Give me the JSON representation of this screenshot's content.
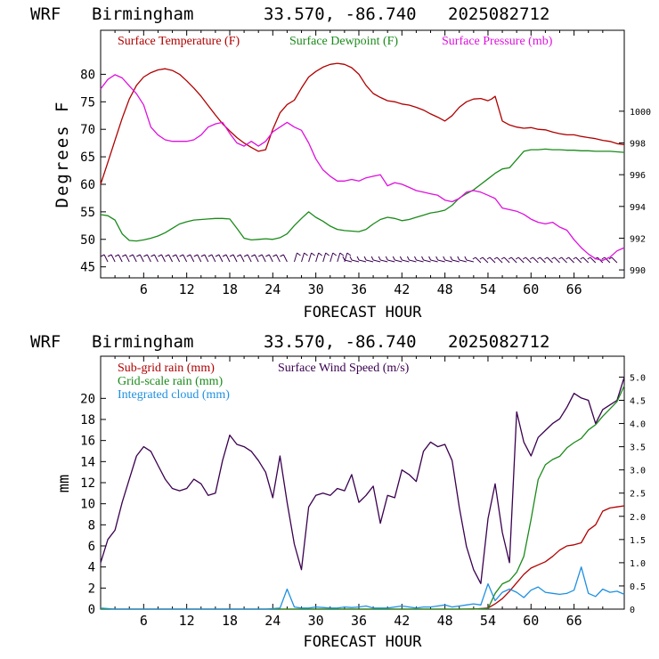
{
  "chart_data": [
    {
      "type": "line",
      "header": {
        "model": "WRF",
        "location": "Birmingham",
        "coords": "33.570, -86.740",
        "run": "2025082712"
      },
      "xlabel": "FORECAST HOUR",
      "ylabel": "Degrees F",
      "xlim": [
        0,
        73
      ],
      "ylim": [
        43,
        88
      ],
      "y2lim": [
        989.5,
        1005.1
      ],
      "xticks": [
        "6",
        "12",
        "18",
        "24",
        "30",
        "36",
        "42",
        "48",
        "54",
        "60",
        "66"
      ],
      "yticks": [
        "45",
        "50",
        "55",
        "60",
        "65",
        "70",
        "75",
        "80"
      ],
      "y2ticks": [
        "990",
        "992",
        "994",
        "996",
        "998",
        "1000"
      ],
      "legend": [
        {
          "label": "Surface Temperature (F)",
          "color": "#b00000"
        },
        {
          "label": "Surface Dewpoint (F)",
          "color": "#1a8a1a"
        },
        {
          "label": "Surface Pressure (mb)",
          "color": "#dd10dd"
        }
      ],
      "series": [
        {
          "name": "Surface Temperature (F)",
          "axis": "left",
          "color": "#b00000",
          "x": [
            0,
            1,
            2,
            3,
            4,
            5,
            6,
            7,
            8,
            9,
            10,
            11,
            12,
            13,
            14,
            15,
            16,
            17,
            18,
            19,
            20,
            21,
            22,
            23,
            24,
            25,
            26,
            27,
            28,
            29,
            30,
            31,
            32,
            33,
            34,
            35,
            36,
            37,
            38,
            39,
            40,
            41,
            42,
            43,
            44,
            45,
            46,
            47,
            48,
            49,
            50,
            51,
            52,
            53,
            54,
            54.5,
            55,
            56,
            57,
            58,
            59,
            60,
            61,
            62,
            63,
            64,
            65,
            66,
            67,
            68,
            69,
            70,
            71,
            72,
            73
          ],
          "y": [
            60,
            64,
            68,
            72,
            75.5,
            78,
            79.5,
            80.3,
            80.8,
            81,
            80.7,
            80,
            78.8,
            77.5,
            76,
            74.3,
            72.6,
            71,
            69.7,
            68.5,
            67.5,
            66.7,
            66,
            66.3,
            70,
            73,
            74.5,
            75.3,
            77.5,
            79.5,
            80.5,
            81.3,
            81.8,
            82,
            81.8,
            81.2,
            80,
            78,
            76.5,
            75.8,
            75.2,
            75,
            74.6,
            74.4,
            74,
            73.5,
            72.8,
            72.2,
            71.5,
            72.5,
            74,
            75,
            75.5,
            75.6,
            75.2,
            75.5,
            76,
            71.5,
            70.8,
            70.4,
            70.2,
            70.3,
            70,
            69.9,
            69.5,
            69.2,
            69,
            69,
            68.7,
            68.5,
            68.3,
            68,
            67.8,
            67.4,
            67.2
          ]
        },
        {
          "name": "Surface Dewpoint (F)",
          "axis": "left",
          "color": "#1a8a1a",
          "x": [
            0,
            1,
            2,
            3,
            4,
            5,
            6,
            7,
            8,
            9,
            10,
            11,
            12,
            13,
            14,
            15,
            16,
            17,
            18,
            19,
            20,
            21,
            22,
            23,
            24,
            25,
            26,
            27,
            28,
            29,
            30,
            31,
            32,
            33,
            34,
            35,
            36,
            37,
            38,
            39,
            40,
            41,
            42,
            43,
            44,
            45,
            46,
            47,
            48,
            49,
            50,
            51,
            52,
            53,
            54,
            55,
            56,
            57,
            58,
            59,
            60,
            61,
            62,
            63,
            64,
            65,
            66,
            67,
            68,
            69,
            70,
            71,
            72,
            73
          ],
          "y": [
            54.5,
            54.3,
            53.5,
            51,
            49.8,
            49.7,
            49.9,
            50.2,
            50.6,
            51.2,
            52,
            52.8,
            53.2,
            53.5,
            53.6,
            53.7,
            53.8,
            53.8,
            53.7,
            52,
            50.2,
            49.9,
            50,
            50.1,
            50,
            50.3,
            51,
            52.5,
            53.8,
            55,
            54,
            53.3,
            52.4,
            51.8,
            51.6,
            51.5,
            51.4,
            51.8,
            52.8,
            53.6,
            54,
            53.8,
            53.4,
            53.6,
            54,
            54.4,
            54.8,
            55,
            55.3,
            56.2,
            57.5,
            58.3,
            59,
            60,
            61,
            62,
            62.8,
            63,
            64.5,
            66,
            66.3,
            66.3,
            66.4,
            66.3,
            66.3,
            66.2,
            66.2,
            66.1,
            66.1,
            66,
            66,
            66,
            65.9,
            65.8
          ]
        },
        {
          "name": "Surface Pressure (mb)",
          "axis": "right",
          "color": "#dd10dd",
          "x": [
            0,
            1,
            2,
            3,
            4,
            5,
            6,
            7,
            8,
            9,
            10,
            11,
            12,
            13,
            14,
            15,
            16,
            17,
            18,
            19,
            20,
            21,
            22,
            23,
            24,
            25,
            26,
            27,
            28,
            29,
            30,
            31,
            32,
            33,
            34,
            35,
            36,
            37,
            38,
            39,
            40,
            41,
            42,
            43,
            44,
            45,
            46,
            47,
            48,
            49,
            50,
            51,
            52,
            53,
            54,
            55,
            56,
            57,
            58,
            59,
            60,
            61,
            62,
            63,
            64,
            65,
            66,
            67,
            68,
            69,
            70,
            71,
            72,
            73
          ],
          "y": [
            1001.4,
            1002,
            1002.3,
            1002.1,
            1001.6,
            1001.1,
            1000.4,
            999,
            998.5,
            998.2,
            998.1,
            998.1,
            998.1,
            998.2,
            998.5,
            999,
            999.2,
            999.3,
            998.6,
            998,
            997.8,
            998.1,
            997.8,
            998.1,
            998.7,
            999,
            999.3,
            999,
            998.8,
            998,
            997,
            996.3,
            995.9,
            995.6,
            995.6,
            995.7,
            995.6,
            995.8,
            995.9,
            996,
            995.3,
            995.5,
            995.4,
            995.2,
            995,
            994.9,
            994.8,
            994.7,
            994.4,
            994.3,
            994.5,
            994.9,
            995,
            994.9,
            994.7,
            994.5,
            993.9,
            993.8,
            993.7,
            993.5,
            993.2,
            993,
            992.9,
            993,
            992.7,
            992.5,
            991.9,
            991.4,
            991,
            990.7,
            990.6,
            990.8,
            991.2,
            991.4
          ]
        }
      ]
    },
    {
      "type": "line",
      "header": {
        "model": "WRF",
        "location": "Birmingham",
        "coords": "33.570, -86.740",
        "run": "2025082712"
      },
      "xlabel": "FORECAST HOUR",
      "ylabel": "mm",
      "xlim": [
        0,
        73
      ],
      "ylim": [
        0,
        24
      ],
      "y2lim": [
        0,
        5.45
      ],
      "xticks": [
        "6",
        "12",
        "18",
        "24",
        "30",
        "36",
        "42",
        "48",
        "54",
        "60",
        "66"
      ],
      "yticks": [
        "0",
        "2",
        "4",
        "6",
        "8",
        "10",
        "12",
        "14",
        "16",
        "18",
        "20"
      ],
      "y2ticks": [
        "0",
        "0.5",
        "1.0",
        "1.5",
        "2.0",
        "2.5",
        "3.0",
        "3.5",
        "4.0",
        "4.5",
        "5.0"
      ],
      "legend": [
        {
          "label": "Sub-grid rain (mm)",
          "color": "#b00000"
        },
        {
          "label": "Surface Wind Speed (m/s)",
          "color": "#3a0050"
        },
        {
          "label": "Grid-scale rain (mm)",
          "color": "#1a8a1a"
        },
        {
          "label": "Integrated cloud (mm)",
          "color": "#1e90e0"
        }
      ],
      "series": [
        {
          "name": "Surface Wind Speed (m/s)",
          "axis": "right",
          "color": "#3a0050",
          "x": [
            0,
            1,
            2,
            3,
            4,
            5,
            6,
            7,
            8,
            9,
            10,
            11,
            12,
            13,
            14,
            15,
            16,
            17,
            18,
            19,
            20,
            21,
            22,
            23,
            24,
            25,
            26,
            27,
            28,
            29,
            30,
            31,
            32,
            33,
            34,
            35,
            36,
            37,
            38,
            39,
            40,
            41,
            42,
            43,
            44,
            45,
            46,
            47,
            48,
            49,
            50,
            51,
            52,
            53,
            54,
            55,
            56,
            57,
            58,
            59,
            60,
            61,
            62,
            63,
            64,
            65,
            66,
            67,
            68,
            69,
            70,
            71,
            72,
            73
          ],
          "y": [
            1.0,
            1.5,
            1.7,
            2.3,
            2.8,
            3.3,
            3.5,
            3.4,
            3.1,
            2.8,
            2.6,
            2.55,
            2.6,
            2.8,
            2.7,
            2.45,
            2.5,
            3.2,
            3.75,
            3.55,
            3.5,
            3.4,
            3.2,
            2.95,
            2.4,
            3.3,
            2.3,
            1.4,
            0.85,
            2.2,
            2.45,
            2.5,
            2.45,
            2.6,
            2.55,
            2.9,
            2.3,
            2.45,
            2.65,
            1.85,
            2.45,
            2.4,
            3.0,
            2.9,
            2.75,
            3.4,
            3.6,
            3.5,
            3.55,
            3.2,
            2.2,
            1.35,
            0.85,
            0.55,
            1.95,
            2.7,
            1.65,
            1.0,
            4.25,
            3.6,
            3.3,
            3.7,
            3.85,
            4.0,
            4.1,
            4.35,
            4.65,
            4.55,
            4.5,
            4.0,
            4.3,
            4.4,
            4.5,
            5.0
          ]
        },
        {
          "name": "Sub-grid rain (mm)",
          "axis": "left",
          "color": "#b00000",
          "x": [
            0,
            50,
            52,
            54,
            55,
            56,
            57,
            58,
            59,
            60,
            61,
            62,
            63,
            64,
            65,
            66,
            67,
            68,
            69,
            70,
            71,
            72,
            73
          ],
          "y": [
            0,
            0,
            0,
            0.1,
            0.5,
            1.0,
            1.7,
            2.5,
            3.3,
            3.9,
            4.2,
            4.5,
            5.0,
            5.6,
            6.0,
            6.1,
            6.3,
            7.5,
            8.0,
            9.3,
            9.6,
            9.7,
            9.8
          ]
        },
        {
          "name": "Grid-scale rain (mm)",
          "axis": "left",
          "color": "#1a8a1a",
          "x": [
            0,
            50,
            54,
            55,
            56,
            57,
            58,
            59,
            60,
            61,
            62,
            63,
            64,
            65,
            66,
            67,
            68,
            69,
            70,
            71,
            72,
            73
          ],
          "y": [
            0,
            0,
            0.05,
            1.5,
            2.4,
            2.7,
            3.5,
            5.0,
            8.5,
            12.3,
            13.7,
            14.2,
            14.5,
            15.3,
            15.8,
            16.2,
            17.0,
            17.5,
            18.3,
            19.0,
            19.7,
            21.2
          ]
        },
        {
          "name": "Integrated cloud (mm)",
          "axis": "left",
          "color": "#1e90e0",
          "x": [
            0,
            1,
            2,
            3,
            4,
            5,
            6,
            7,
            8,
            9,
            10,
            11,
            12,
            13,
            14,
            15,
            16,
            17,
            18,
            19,
            20,
            21,
            22,
            23,
            24,
            25,
            26,
            27,
            28,
            29,
            30,
            31,
            32,
            33,
            34,
            35,
            36,
            37,
            38,
            39,
            40,
            41,
            42,
            43,
            44,
            45,
            46,
            47,
            48,
            49,
            50,
            51,
            52,
            53,
            54,
            55,
            56,
            57,
            58,
            59,
            60,
            61,
            62,
            63,
            64,
            65,
            66,
            67,
            68,
            69,
            70,
            71,
            72,
            73
          ],
          "y": [
            0.1,
            0.05,
            0,
            0,
            0,
            0,
            0,
            0,
            0,
            0,
            0,
            0,
            0,
            0,
            0,
            0,
            0,
            0,
            0,
            0,
            0,
            0,
            0,
            0,
            0.05,
            0.1,
            1.9,
            0.2,
            0.1,
            0.1,
            0.2,
            0.15,
            0.1,
            0.1,
            0.2,
            0.15,
            0.2,
            0.3,
            0.1,
            0.1,
            0.1,
            0.2,
            0.3,
            0.2,
            0.1,
            0.2,
            0.2,
            0.3,
            0.4,
            0.2,
            0.3,
            0.4,
            0.5,
            0.4,
            2.4,
            0.8,
            1.6,
            1.9,
            1.6,
            1.1,
            1.8,
            2.1,
            1.6,
            1.5,
            1.4,
            1.5,
            1.8,
            4.0,
            1.5,
            1.2,
            1.9,
            1.6,
            1.7,
            1.4
          ]
        }
      ]
    }
  ]
}
